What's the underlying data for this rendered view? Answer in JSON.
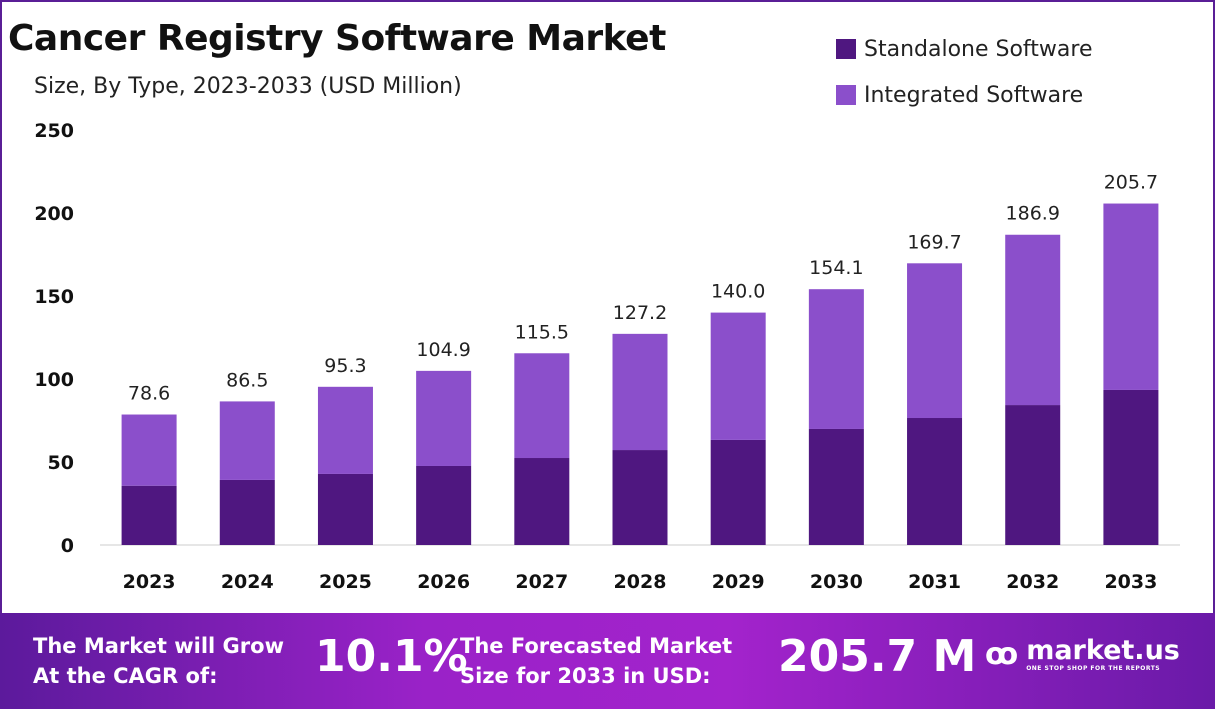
{
  "chart_data": {
    "type": "bar",
    "stacked": true,
    "title": "Cancer Registry Software Market",
    "subtitle": "Size, By Type, 2023-2033 (USD Million)",
    "categories": [
      "2023",
      "2024",
      "2025",
      "2026",
      "2027",
      "2028",
      "2029",
      "2030",
      "2031",
      "2032",
      "2033"
    ],
    "series": [
      {
        "name": "Standalone Software",
        "color": "#4f1780",
        "values": [
          35.7,
          39.2,
          42.8,
          47.6,
          52.4,
          57.2,
          63.3,
          69.9,
          76.5,
          84.3,
          93.4
        ]
      },
      {
        "name": "Integrated Software",
        "color": "#8b4fcb",
        "values": [
          42.9,
          47.3,
          52.5,
          57.3,
          63.1,
          70.0,
          76.7,
          84.2,
          93.2,
          102.6,
          112.3
        ]
      }
    ],
    "totals": [
      "78.6",
      "86.5",
      "95.3",
      "104.9",
      "115.5",
      "127.2",
      "140.0",
      "154.1",
      "169.7",
      "186.9",
      "205.7"
    ],
    "ylim": [
      0,
      250
    ],
    "yticks": [
      "0",
      "50",
      "100",
      "150",
      "200",
      "250"
    ],
    "grid": false,
    "legend": "top-right"
  },
  "footer": {
    "cagr_text_1": "The Market will Grow",
    "cagr_text_2": "At the CAGR of:",
    "cagr_value": "10.1%",
    "forecast_text_1": "The Forecasted Market",
    "forecast_text_2": "Size for 2033 in USD:",
    "forecast_value": "205.7 M",
    "logo_name": "market.us",
    "logo_tagline": "ONE STOP SHOP FOR THE REPORTS"
  }
}
